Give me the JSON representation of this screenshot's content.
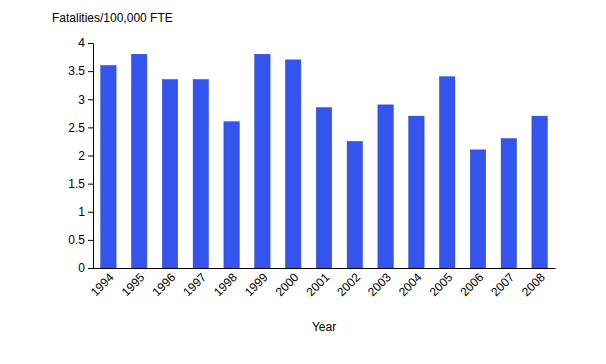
{
  "chart_data": {
    "type": "bar",
    "y_label": "Fatalities/100,000 FTE",
    "x_label": "Year",
    "categories": [
      "1994",
      "1995",
      "1996",
      "1997",
      "1998",
      "1999",
      "2000",
      "2001",
      "2002",
      "2003",
      "2004",
      "2005",
      "2006",
      "2007",
      "2008"
    ],
    "values": [
      3.6,
      3.8,
      3.35,
      3.35,
      2.6,
      3.8,
      3.7,
      2.85,
      2.25,
      2.9,
      2.7,
      3.4,
      2.1,
      2.3,
      2.7
    ],
    "color": "#3355ee",
    "ylim": [
      0,
      4
    ],
    "yticks": [
      0,
      0.5,
      1,
      1.5,
      2,
      2.5,
      3,
      3.5,
      4
    ],
    "grid": false
  }
}
